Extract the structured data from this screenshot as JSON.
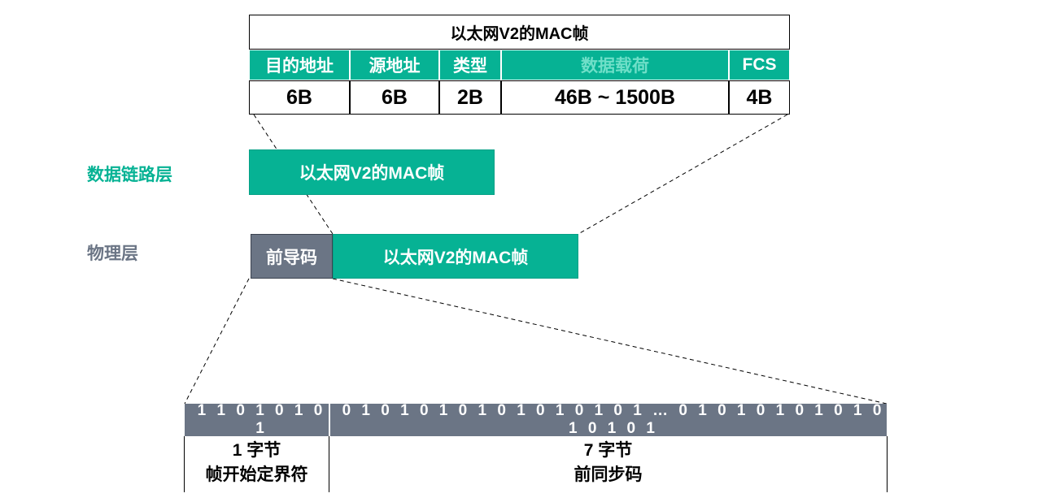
{
  "mac_frame": {
    "title": "以太网V2的MAC帧",
    "fields": [
      {
        "name": "目的地址",
        "size": "6B"
      },
      {
        "name": "源地址",
        "size": "6B"
      },
      {
        "name": "类型",
        "size": "2B"
      },
      {
        "name": "数据载荷",
        "size": "46B ~ 1500B"
      },
      {
        "name": "FCS",
        "size": "4B"
      }
    ]
  },
  "layers": {
    "data_link": {
      "label": "数据链路层",
      "frame": "以太网V2的MAC帧"
    },
    "physical": {
      "label": "物理层",
      "preamble": "前导码",
      "frame": "以太网V2的MAC帧"
    }
  },
  "preamble_detail": {
    "sfd": {
      "bits": "1 1 0 1 0 1 0 1",
      "bytes": "1 字节",
      "name": "帧开始定界符"
    },
    "sync": {
      "bits": "0 1 0 1 0 1 0 1 0 1 0 1 0 1 0 1 … 0 1 0 1 0 1 0 1 0 1 0 1 0 1 0 1",
      "bytes": "7 字节",
      "name": "前同步码"
    }
  },
  "colors": {
    "accent": "#06b294",
    "gray": "#6b7585",
    "payload_text": "#6fdfc8"
  }
}
